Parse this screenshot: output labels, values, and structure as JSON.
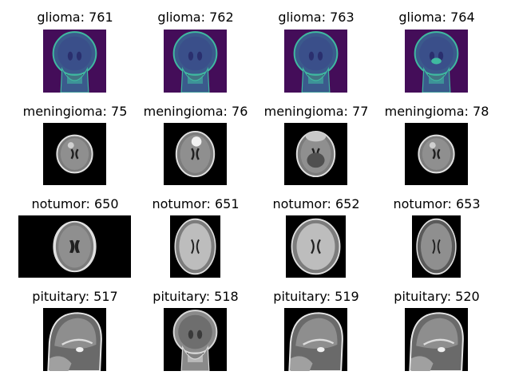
{
  "grid": {
    "rows": [
      {
        "category": "glioma",
        "style": "viridis",
        "tiles": [
          {
            "title": "glioma: 761",
            "kind": "coronal"
          },
          {
            "title": "glioma: 762",
            "kind": "coronal"
          },
          {
            "title": "glioma: 763",
            "kind": "coronal"
          },
          {
            "title": "glioma: 764",
            "kind": "coronal2"
          }
        ]
      },
      {
        "category": "meningioma",
        "style": "gray",
        "tiles": [
          {
            "title": "meningioma: 75",
            "kind": "axial-small"
          },
          {
            "title": "meningioma: 76",
            "kind": "axial-tumor"
          },
          {
            "title": "meningioma: 77",
            "kind": "axial-base"
          },
          {
            "title": "meningioma: 78",
            "kind": "axial-small"
          }
        ]
      },
      {
        "category": "notumor",
        "style": "gray",
        "tiles": [
          {
            "title": "notumor: 650",
            "kind": "axial-wide"
          },
          {
            "title": "notumor: 651",
            "kind": "axial-flair"
          },
          {
            "title": "notumor: 652",
            "kind": "axial-flair"
          },
          {
            "title": "notumor: 653",
            "kind": "axial-flair-dark"
          }
        ]
      },
      {
        "category": "pituitary",
        "style": "gray",
        "tiles": [
          {
            "title": "pituitary: 517",
            "kind": "sagittal"
          },
          {
            "title": "pituitary: 518",
            "kind": "coronal-gray"
          },
          {
            "title": "pituitary: 519",
            "kind": "sagittal"
          },
          {
            "title": "pituitary: 520",
            "kind": "sagittal"
          }
        ]
      }
    ]
  },
  "colors": {
    "viridis_bg": "#440d59",
    "viridis_mid": "#3b5a8c",
    "viridis_bright": "#3fb9a0",
    "scan_bg": "#000000",
    "tissue": "#9a9a9a"
  }
}
